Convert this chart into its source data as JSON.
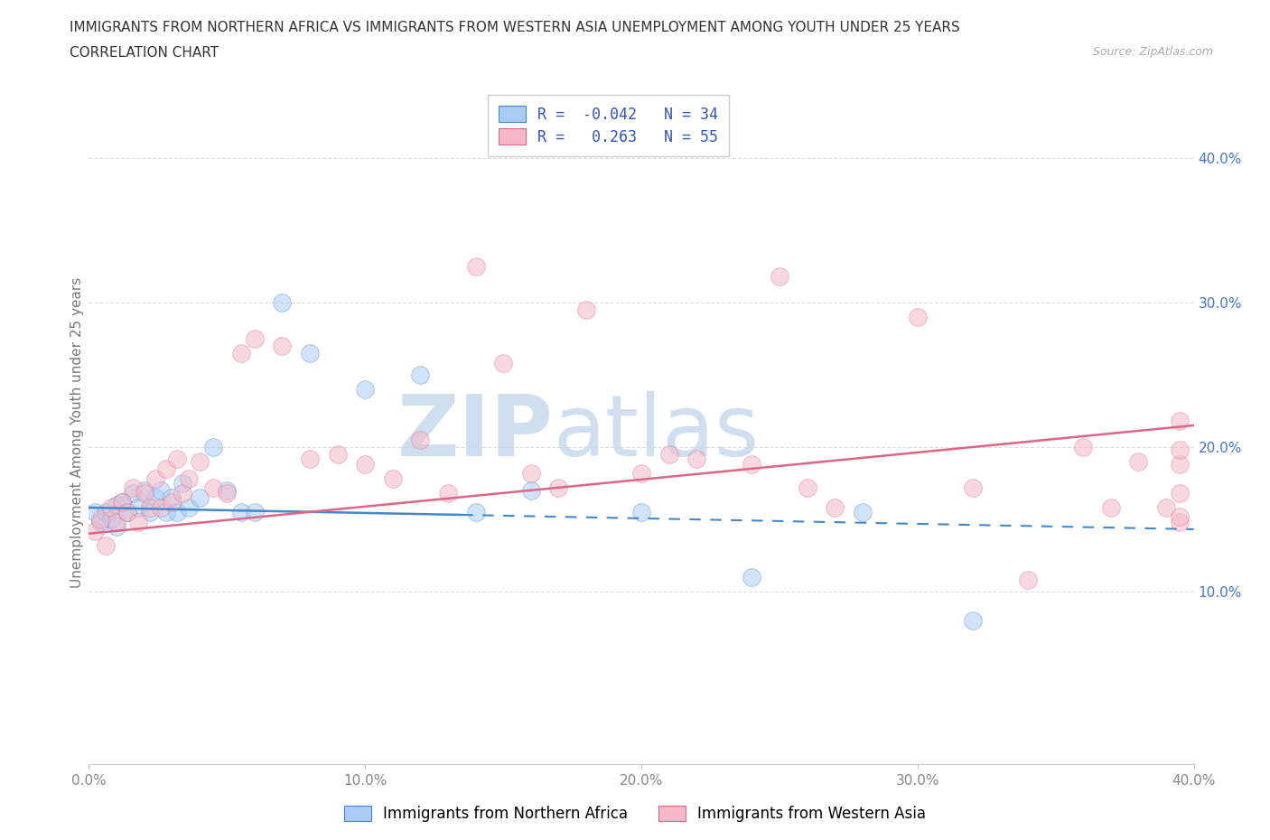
{
  "title_line1": "IMMIGRANTS FROM NORTHERN AFRICA VS IMMIGRANTS FROM WESTERN ASIA UNEMPLOYMENT AMONG YOUTH UNDER 25 YEARS",
  "title_line2": "CORRELATION CHART",
  "source": "Source: ZipAtlas.com",
  "ylabel": "Unemployment Among Youth under 25 years",
  "xlim": [
    0.0,
    0.4
  ],
  "ylim": [
    -0.02,
    0.44
  ],
  "xticks": [
    0.0,
    0.1,
    0.2,
    0.3,
    0.4
  ],
  "yticks": [
    0.1,
    0.2,
    0.3,
    0.4
  ],
  "xtick_labels": [
    "0.0%",
    "10.0%",
    "20.0%",
    "30.0%",
    "40.0%"
  ],
  "ytick_labels": [
    "10.0%",
    "20.0%",
    "30.0%",
    "40.0%"
  ],
  "grid_yticks": [
    0.1,
    0.2,
    0.3,
    0.4
  ],
  "series": [
    {
      "name": "Immigrants from Northern Africa",
      "R": -0.042,
      "N": 34,
      "color": "#aaccf4",
      "edge_color": "#4488cc",
      "x": [
        0.002,
        0.004,
        0.006,
        0.008,
        0.01,
        0.01,
        0.012,
        0.014,
        0.016,
        0.018,
        0.02,
        0.022,
        0.024,
        0.026,
        0.028,
        0.03,
        0.032,
        0.034,
        0.036,
        0.04,
        0.045,
        0.05,
        0.055,
        0.06,
        0.07,
        0.08,
        0.1,
        0.12,
        0.14,
        0.16,
        0.2,
        0.24,
        0.28,
        0.32
      ],
      "y": [
        0.155,
        0.148,
        0.155,
        0.15,
        0.16,
        0.145,
        0.162,
        0.155,
        0.168,
        0.158,
        0.17,
        0.155,
        0.165,
        0.17,
        0.155,
        0.165,
        0.155,
        0.175,
        0.158,
        0.165,
        0.2,
        0.17,
        0.155,
        0.155,
        0.3,
        0.265,
        0.24,
        0.25,
        0.155,
        0.17,
        0.155,
        0.11,
        0.155,
        0.08
      ],
      "trend_x": [
        0.0,
        0.135,
        0.135,
        0.4
      ],
      "trend_y": [
        0.158,
        0.153,
        0.153,
        0.143
      ],
      "trend_styles": [
        "solid",
        "solid",
        "dashed",
        "dashed"
      ],
      "trend_color": "#4488cc"
    },
    {
      "name": "Immigrants from Western Asia",
      "R": 0.263,
      "N": 55,
      "color": "#f4b8c8",
      "edge_color": "#dd6688",
      "x": [
        0.002,
        0.004,
        0.006,
        0.008,
        0.01,
        0.012,
        0.014,
        0.016,
        0.018,
        0.02,
        0.022,
        0.024,
        0.026,
        0.028,
        0.03,
        0.032,
        0.034,
        0.036,
        0.04,
        0.045,
        0.05,
        0.055,
        0.06,
        0.07,
        0.08,
        0.09,
        0.1,
        0.11,
        0.12,
        0.13,
        0.14,
        0.15,
        0.16,
        0.17,
        0.18,
        0.2,
        0.21,
        0.22,
        0.24,
        0.25,
        0.26,
        0.27,
        0.3,
        0.32,
        0.34,
        0.36,
        0.37,
        0.38,
        0.39,
        0.395,
        0.395,
        0.395,
        0.395,
        0.395,
        0.395
      ],
      "y": [
        0.142,
        0.15,
        0.132,
        0.158,
        0.148,
        0.162,
        0.155,
        0.172,
        0.148,
        0.168,
        0.158,
        0.178,
        0.158,
        0.185,
        0.162,
        0.192,
        0.168,
        0.178,
        0.19,
        0.172,
        0.168,
        0.265,
        0.275,
        0.27,
        0.192,
        0.195,
        0.188,
        0.178,
        0.205,
        0.168,
        0.325,
        0.258,
        0.182,
        0.172,
        0.295,
        0.182,
        0.195,
        0.192,
        0.188,
        0.318,
        0.172,
        0.158,
        0.29,
        0.172,
        0.108,
        0.2,
        0.158,
        0.19,
        0.158,
        0.218,
        0.148,
        0.168,
        0.188,
        0.198,
        0.152
      ],
      "trend_x": [
        0.0,
        0.4
      ],
      "trend_y": [
        0.14,
        0.215
      ],
      "trend_styles": [
        "solid",
        "solid"
      ],
      "trend_color": "#dd6688"
    }
  ],
  "watermark_zip": "ZIP",
  "watermark_atlas": "atlas",
  "watermark_color": "#c5d8ec",
  "background_color": "#ffffff",
  "grid_color": "#dddddd",
  "title_fontsize": 11,
  "axis_label_fontsize": 11,
  "tick_fontsize": 11,
  "legend_fontsize": 12,
  "marker_size": 200,
  "marker_alpha": 0.55,
  "legend_text_color": "#3355bb",
  "tick_color": "#4477cc"
}
